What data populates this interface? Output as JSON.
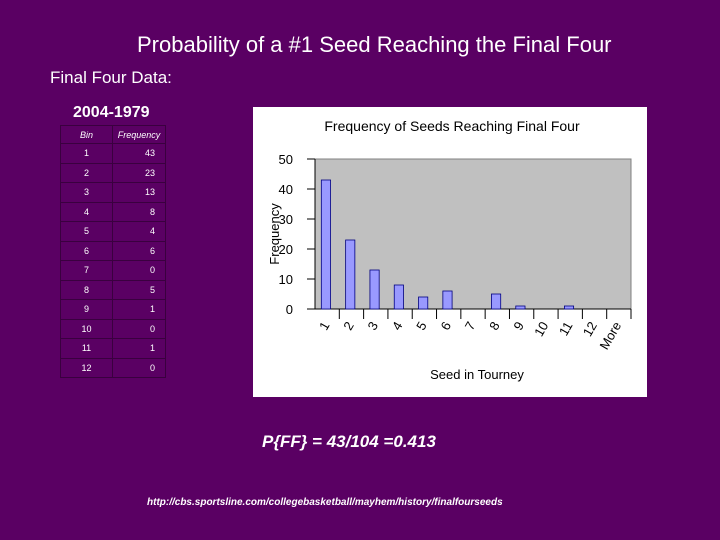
{
  "slide": {
    "title": "Probability of a #1 Seed Reaching the Final Four",
    "subtitle": "Final Four Data:",
    "year_range": "2004-1979",
    "formula": "P{FF} = 43/104 =0.413",
    "source": "http://cbs.sportsline.com/collegebasketball/mayhem/history/finalfourseeds"
  },
  "table": {
    "headers": [
      "Bin",
      "Frequency"
    ],
    "rows": [
      [
        "1",
        "43"
      ],
      [
        "2",
        "23"
      ],
      [
        "3",
        "13"
      ],
      [
        "4",
        "8"
      ],
      [
        "5",
        "4"
      ],
      [
        "6",
        "6"
      ],
      [
        "7",
        "0"
      ],
      [
        "8",
        "5"
      ],
      [
        "9",
        "1"
      ],
      [
        "10",
        "0"
      ],
      [
        "11",
        "1"
      ],
      [
        "12",
        "0"
      ]
    ]
  },
  "chart_data": {
    "type": "bar",
    "title": "Frequency of Seeds Reaching Final Four",
    "xlabel": "Seed in Tourney",
    "ylabel": "Frequency",
    "categories": [
      "1",
      "2",
      "3",
      "4",
      "5",
      "6",
      "7",
      "8",
      "9",
      "10",
      "11",
      "12",
      "More"
    ],
    "values": [
      43,
      23,
      13,
      8,
      4,
      6,
      0,
      5,
      1,
      0,
      1,
      0,
      0
    ],
    "ylim": [
      0,
      50
    ],
    "yticks": [
      0,
      10,
      20,
      30,
      40,
      50
    ],
    "grid": false,
    "legend": "none",
    "colors": {
      "bar": "#9999ff",
      "bar_stroke": "#000080",
      "plot_bg": "#c0c0c0"
    }
  }
}
